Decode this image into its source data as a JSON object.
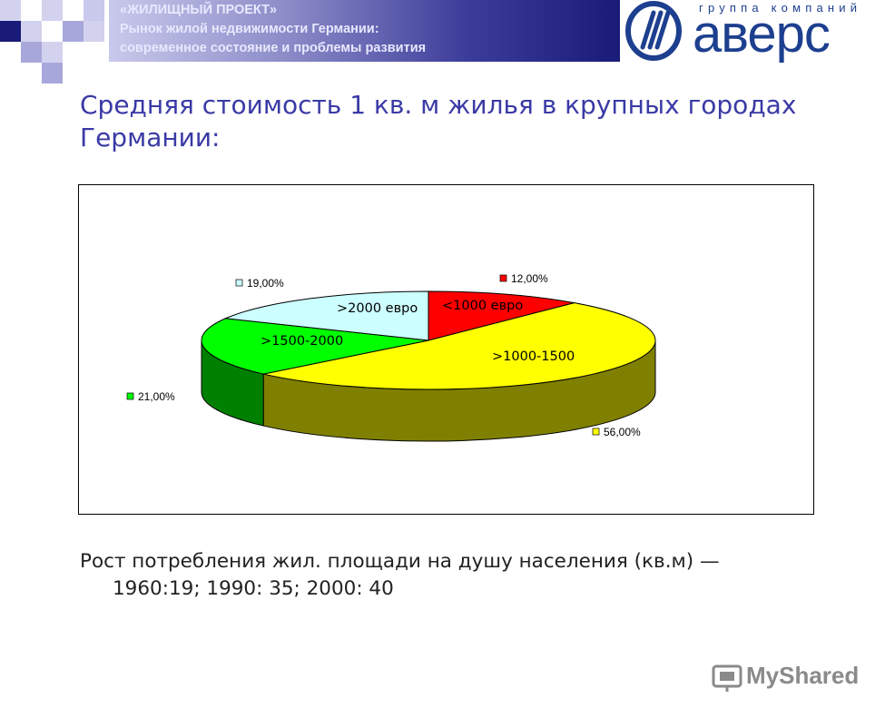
{
  "banner": {
    "line1": "«ЖИЛИЩНЫЙ ПРОЕКТ»",
    "line2": "Рынок жилой недвижимости Германии:",
    "line3": "современное состояние и проблемы развития"
  },
  "logo": {
    "subtitle": "группа компаний",
    "name": "аверс"
  },
  "title": "Средняя стоимость 1 кв. м жилья в крупных городах Германии:",
  "chart_data": {
    "type": "pie",
    "style": "3d-exploded",
    "slices": [
      {
        "label": "<1000 евро",
        "value": 12,
        "pct_label": "12,00%",
        "color": "#ff0000"
      },
      {
        "label": ">1000-1500",
        "value": 56,
        "pct_label": "56,00%",
        "color": "#ffff00"
      },
      {
        "label": ">1500-2000",
        "value": 21,
        "pct_label": "21,00%",
        "color": "#00ff00"
      },
      {
        "label": ">2000 евро",
        "value": 19,
        "pct_label": "19,00%",
        "color": "#ccffff"
      }
    ]
  },
  "body": {
    "line1": "Рост потребления жил. площади на душу населения (кв.м) —",
    "line2": "1960:19; 1990: 35;  2000: 40"
  },
  "watermark": {
    "text": "MyShared"
  }
}
